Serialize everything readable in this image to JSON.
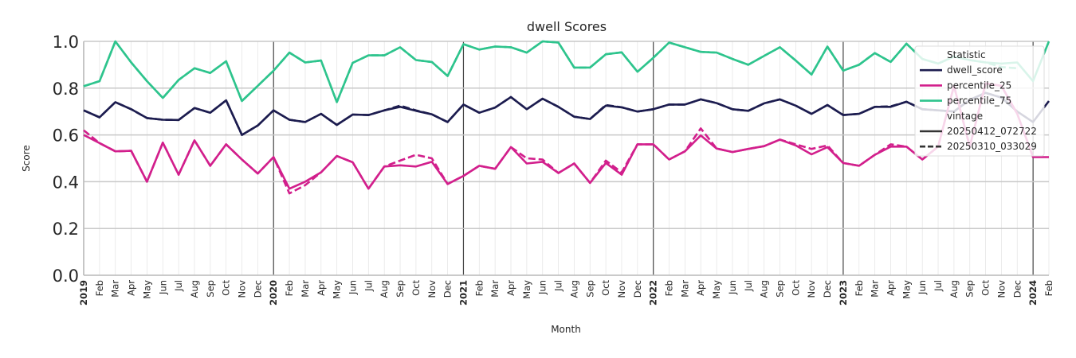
{
  "chart_data": {
    "type": "line",
    "title": "dwell Scores",
    "xlabel": "Month",
    "ylabel": "Score",
    "ylim": [
      0,
      1
    ],
    "yticks": [
      "0.0",
      "0.2",
      "0.4",
      "0.6",
      "0.8",
      "1.0"
    ],
    "x_labels": [
      "2019",
      "Feb",
      "Mar",
      "Apr",
      "May",
      "Jun",
      "Jul",
      "Aug",
      "Sep",
      "Oct",
      "Nov",
      "Dec",
      "2020",
      "Feb",
      "Mar",
      "Apr",
      "May",
      "Jun",
      "Jul",
      "Aug",
      "Sep",
      "Oct",
      "Nov",
      "Dec",
      "2021",
      "Feb",
      "Mar",
      "Apr",
      "May",
      "Jun",
      "Jul",
      "Aug",
      "Sep",
      "Oct",
      "Nov",
      "Dec",
      "2022",
      "Feb",
      "Mar",
      "Apr",
      "May",
      "Jun",
      "Jul",
      "Aug",
      "Sep",
      "Oct",
      "Nov",
      "Dec",
      "2023",
      "Feb",
      "Mar",
      "Apr",
      "May",
      "Jun",
      "Jul",
      "Aug",
      "Sep",
      "Oct",
      "Nov",
      "Dec",
      "2024",
      "Feb"
    ],
    "grid": true,
    "colors": {
      "dwell_score": "#1c1c4f",
      "percentile_25": "#d21f8c",
      "percentile_75": "#2ec48d",
      "vintage": "#333333"
    },
    "legend": {
      "title": "Statistic",
      "entries": [
        "dwell_score",
        "percentile_25",
        "percentile_75"
      ],
      "vintage_title": "vintage",
      "vintage_entries": [
        "20250412_072722",
        "20250310_033029"
      ],
      "placement": "top-right"
    },
    "series": [
      {
        "name": "dwell_score",
        "vintage": "20250412_072722",
        "style": "solid",
        "values": [
          0.705,
          0.675,
          0.74,
          0.71,
          0.672,
          0.665,
          0.664,
          0.715,
          0.695,
          0.748,
          0.6,
          0.64,
          0.705,
          0.665,
          0.655,
          0.69,
          0.643,
          0.687,
          0.685,
          0.705,
          0.72,
          0.703,
          0.688,
          0.655,
          0.73,
          0.695,
          0.717,
          0.762,
          0.71,
          0.755,
          0.72,
          0.678,
          0.668,
          0.725,
          0.718,
          0.7,
          0.71,
          0.73,
          0.73,
          0.752,
          0.736,
          0.71,
          0.703,
          0.735,
          0.752,
          0.725,
          0.69,
          0.728,
          0.685,
          0.69,
          0.72,
          0.72,
          0.742,
          0.71,
          0.705,
          0.7,
          0.75,
          0.78,
          0.76,
          0.7,
          0.655,
          0.745
        ]
      },
      {
        "name": "dwell_score",
        "vintage": "20250310_033029",
        "style": "dashed",
        "values": [
          0.705,
          0.675,
          0.74,
          0.71,
          0.672,
          0.665,
          0.664,
          0.715,
          0.695,
          0.748,
          0.6,
          0.64,
          0.705,
          0.665,
          0.655,
          0.69,
          0.643,
          0.687,
          0.685,
          0.705,
          0.725,
          0.705,
          0.688,
          0.655,
          0.73,
          0.695,
          0.717,
          0.762,
          0.71,
          0.755,
          0.72,
          0.678,
          0.668,
          0.728,
          0.718,
          0.7,
          0.71,
          0.73,
          0.73,
          0.752,
          0.736,
          0.71,
          0.703,
          0.735,
          0.752,
          0.725,
          0.69,
          0.728,
          0.685,
          0.69,
          0.72,
          0.722,
          0.742,
          0.71,
          0.705,
          0.7,
          0.75,
          0.78,
          0.76,
          0.7,
          null,
          null
        ]
      },
      {
        "name": "percentile_25",
        "vintage": "20250412_072722",
        "style": "solid",
        "values": [
          0.6,
          0.565,
          0.53,
          0.532,
          0.4,
          0.567,
          0.43,
          0.577,
          0.468,
          0.56,
          0.495,
          0.435,
          0.505,
          0.37,
          0.4,
          0.44,
          0.51,
          0.483,
          0.37,
          0.465,
          0.47,
          0.465,
          0.485,
          0.39,
          0.425,
          0.468,
          0.455,
          0.548,
          0.478,
          0.485,
          0.437,
          0.478,
          0.395,
          0.48,
          0.43,
          0.56,
          0.56,
          0.495,
          0.53,
          0.598,
          0.542,
          0.527,
          0.54,
          0.552,
          0.58,
          0.555,
          0.517,
          0.548,
          0.48,
          0.468,
          0.515,
          0.55,
          0.55,
          0.495,
          0.55,
          0.81,
          0.55,
          0.82,
          0.81,
          0.69,
          0.505,
          0.505
        ]
      },
      {
        "name": "percentile_25",
        "vintage": "20250310_033029",
        "style": "dashed",
        "values": [
          0.62,
          0.565,
          0.53,
          0.532,
          0.4,
          0.567,
          0.43,
          0.577,
          0.468,
          0.56,
          0.495,
          0.435,
          0.505,
          0.35,
          0.385,
          0.44,
          0.51,
          0.483,
          0.37,
          0.465,
          0.49,
          0.515,
          0.5,
          0.39,
          0.425,
          0.468,
          0.455,
          0.548,
          0.5,
          0.495,
          0.437,
          0.478,
          0.395,
          0.49,
          0.44,
          0.56,
          0.56,
          0.495,
          0.53,
          0.628,
          0.542,
          0.527,
          0.54,
          0.552,
          0.58,
          0.56,
          0.54,
          0.555,
          0.48,
          0.468,
          0.515,
          0.56,
          0.55,
          0.495,
          0.55,
          0.81,
          0.55,
          0.82,
          0.81,
          0.69,
          null,
          null
        ]
      },
      {
        "name": "percentile_75",
        "vintage": "20250412_072722",
        "style": "solid",
        "values": [
          0.808,
          0.83,
          1.0,
          0.91,
          0.83,
          0.758,
          0.835,
          0.885,
          0.865,
          0.915,
          0.745,
          0.81,
          0.875,
          0.952,
          0.91,
          0.918,
          0.74,
          0.908,
          0.94,
          0.94,
          0.975,
          0.92,
          0.912,
          0.852,
          0.988,
          0.965,
          0.978,
          0.975,
          0.952,
          1.0,
          0.995,
          0.888,
          0.888,
          0.945,
          0.953,
          0.87,
          0.93,
          0.995,
          0.975,
          0.955,
          0.952,
          0.925,
          0.9,
          0.938,
          0.975,
          0.918,
          0.858,
          0.978,
          0.875,
          0.9,
          0.95,
          0.912,
          0.99,
          0.925,
          0.905,
          0.935,
          0.92,
          0.91,
          0.905,
          0.91,
          0.83,
          1.0
        ]
      },
      {
        "name": "percentile_75",
        "vintage": "20250310_033029",
        "style": "dashed",
        "values": [
          0.808,
          0.83,
          1.0,
          0.91,
          0.83,
          0.758,
          0.835,
          0.885,
          0.865,
          0.915,
          0.745,
          0.81,
          0.875,
          0.952,
          0.91,
          0.918,
          0.74,
          0.908,
          0.94,
          0.94,
          0.975,
          0.92,
          0.912,
          0.852,
          0.988,
          0.965,
          0.978,
          0.975,
          0.952,
          1.0,
          0.995,
          0.888,
          0.888,
          0.945,
          0.953,
          0.87,
          0.93,
          0.995,
          0.975,
          0.955,
          0.952,
          0.925,
          0.9,
          0.938,
          0.975,
          0.918,
          0.858,
          0.978,
          0.875,
          0.9,
          0.95,
          0.912,
          0.99,
          0.925,
          0.905,
          0.935,
          0.92,
          0.91,
          0.89,
          0.885,
          null,
          null
        ]
      }
    ]
  }
}
